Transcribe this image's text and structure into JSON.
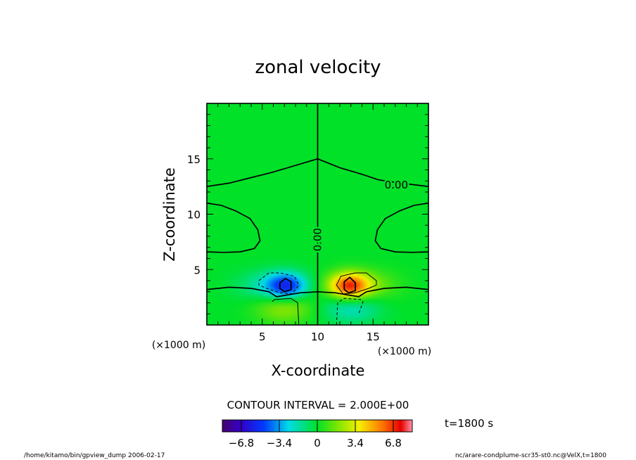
{
  "chart_data": {
    "type": "heatmap",
    "title": "zonal velocity",
    "xlabel": "X-coordinate",
    "ylabel": "Z-coordinate",
    "x_unit": "(×1000 m)",
    "y_unit": "(×1000 m)",
    "xlim": [
      0,
      20
    ],
    "ylim": [
      0,
      20
    ],
    "x_ticks": [
      5,
      10,
      15
    ],
    "y_ticks": [
      5,
      10,
      15
    ],
    "contour_interval_label": "CONTOUR INTERVAL = 2.000E+00",
    "contour_labels": [
      "0.00",
      "0.00"
    ],
    "time_label": "t=1800 s",
    "colorbar": {
      "range": [
        -8.5,
        8.5
      ],
      "tick_values": [
        -6.8,
        -3.4,
        0,
        3.4,
        6.8
      ],
      "tick_labels": [
        "−6.8",
        "−3.4",
        "0",
        "3.4",
        "6.8"
      ]
    },
    "features": [
      {
        "x": 7.2,
        "z": 3.5,
        "value": -5.0
      },
      {
        "x": 12.8,
        "z": 3.5,
        "value": 6.5
      },
      {
        "x": 7.0,
        "z": 1.6,
        "value": 2.2
      },
      {
        "x": 13.0,
        "z": 1.6,
        "value": -2.2
      },
      {
        "x": 5.2,
        "z": 3.5,
        "value": -1.5
      },
      {
        "x": 14.8,
        "z": 3.5,
        "value": 1.5
      }
    ]
  },
  "footer": {
    "left": "/home/kitamo/bin/gpview_dump  2006-02-17",
    "right": "nc/arare-condplume-scr35-st0.nc@VelX,t=1800"
  }
}
